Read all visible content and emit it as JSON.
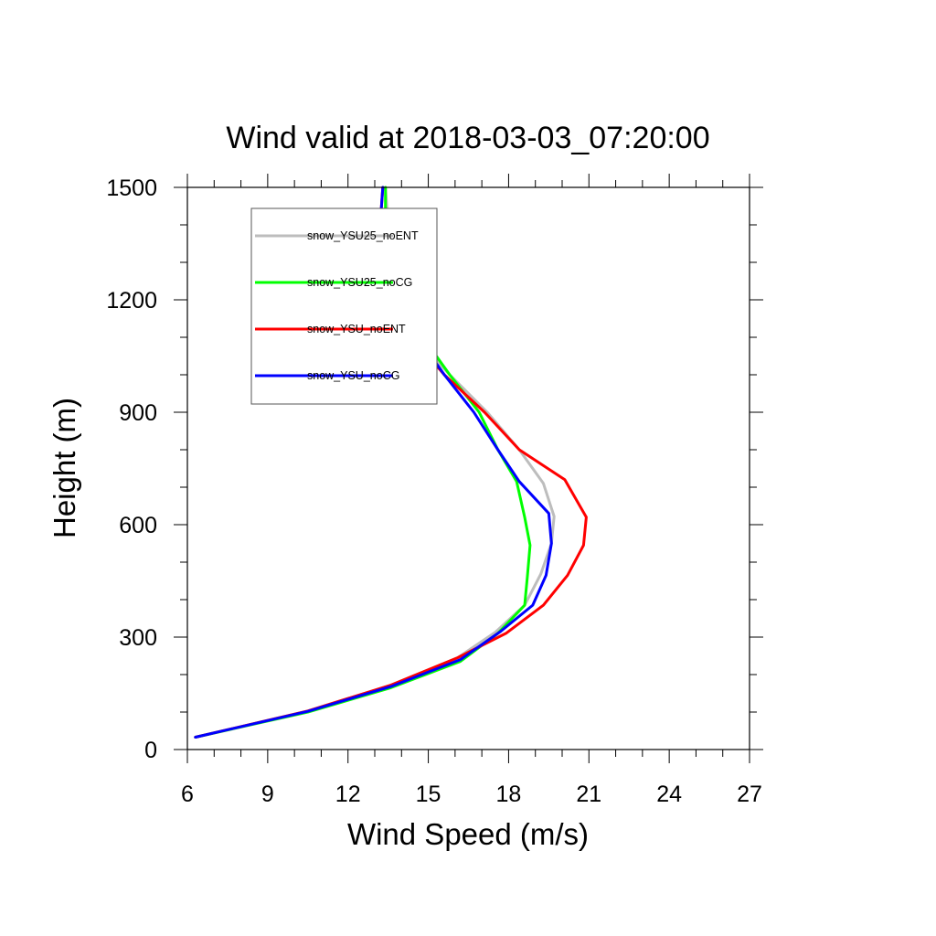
{
  "chart_data": {
    "type": "line",
    "title": "Wind valid at 2018-03-03_07:20:00",
    "xlabel": "Wind Speed (m/s)",
    "ylabel": "Height (m)",
    "xlim": [
      6,
      27
    ],
    "ylim": [
      0,
      1500
    ],
    "xticks": [
      6,
      9,
      12,
      15,
      18,
      21,
      24,
      27
    ],
    "yticks": [
      0,
      300,
      600,
      900,
      1200,
      1500
    ],
    "xtick_labels": [
      "6",
      "9",
      "12",
      "15",
      "18",
      "21",
      "24",
      "27"
    ],
    "ytick_labels": [
      "0",
      "300",
      "600",
      "900",
      "1200",
      "1500"
    ],
    "x_minor_step": 1,
    "y_minor_step": 100,
    "grid": false,
    "legend_position": "top-left",
    "series": [
      {
        "name": "snow_YSU25_noENT",
        "color": "#bdbdbd",
        "points": [
          [
            6.3,
            33
          ],
          [
            10.5,
            103
          ],
          [
            13.6,
            172
          ],
          [
            16.1,
            245
          ],
          [
            17.5,
            313
          ],
          [
            18.6,
            385
          ],
          [
            19.2,
            468
          ],
          [
            19.6,
            550
          ],
          [
            19.7,
            622
          ],
          [
            19.3,
            710
          ],
          [
            18.4,
            800
          ],
          [
            17.2,
            900
          ],
          [
            15.8,
            1000
          ],
          [
            14.5,
            1100
          ],
          [
            13.9,
            1200
          ],
          [
            13.7,
            1300
          ],
          [
            13.5,
            1400
          ],
          [
            13.4,
            1500
          ]
        ]
      },
      {
        "name": "snow_YSU25_noCG",
        "color": "#00ff00",
        "points": [
          [
            6.3,
            33
          ],
          [
            10.5,
            100
          ],
          [
            13.6,
            165
          ],
          [
            16.2,
            235
          ],
          [
            17.6,
            310
          ],
          [
            18.6,
            385
          ],
          [
            18.7,
            460
          ],
          [
            18.8,
            545
          ],
          [
            18.6,
            620
          ],
          [
            18.3,
            715
          ],
          [
            17.6,
            800
          ],
          [
            16.9,
            900
          ],
          [
            15.8,
            1000
          ],
          [
            14.8,
            1100
          ],
          [
            14.1,
            1200
          ],
          [
            13.5,
            1300
          ],
          [
            13.4,
            1400
          ],
          [
            13.4,
            1500
          ]
        ]
      },
      {
        "name": "snow_YSU_noENT",
        "color": "#ff0000",
        "points": [
          [
            6.3,
            33
          ],
          [
            10.5,
            103
          ],
          [
            13.6,
            172
          ],
          [
            16.1,
            245
          ],
          [
            17.9,
            310
          ],
          [
            19.3,
            385
          ],
          [
            20.2,
            465
          ],
          [
            20.8,
            545
          ],
          [
            20.9,
            620
          ],
          [
            20.1,
            720
          ],
          [
            18.4,
            800
          ],
          [
            17.1,
            900
          ],
          [
            15.6,
            1000
          ],
          [
            14.4,
            1100
          ],
          [
            13.2,
            1200
          ],
          [
            12.9,
            1300
          ],
          [
            13.2,
            1400
          ],
          [
            13.3,
            1500
          ]
        ]
      },
      {
        "name": "snow_YSU_noCG",
        "color": "#0000ff",
        "points": [
          [
            6.3,
            33
          ],
          [
            10.5,
            102
          ],
          [
            13.6,
            168
          ],
          [
            16.2,
            240
          ],
          [
            17.7,
            315
          ],
          [
            18.9,
            385
          ],
          [
            19.4,
            465
          ],
          [
            19.6,
            550
          ],
          [
            19.5,
            630
          ],
          [
            18.4,
            715
          ],
          [
            17.6,
            800
          ],
          [
            16.7,
            900
          ],
          [
            15.6,
            1000
          ],
          [
            14.6,
            1100
          ],
          [
            13.3,
            1200
          ],
          [
            12.9,
            1300
          ],
          [
            13.2,
            1400
          ],
          [
            13.3,
            1500
          ]
        ]
      }
    ]
  }
}
